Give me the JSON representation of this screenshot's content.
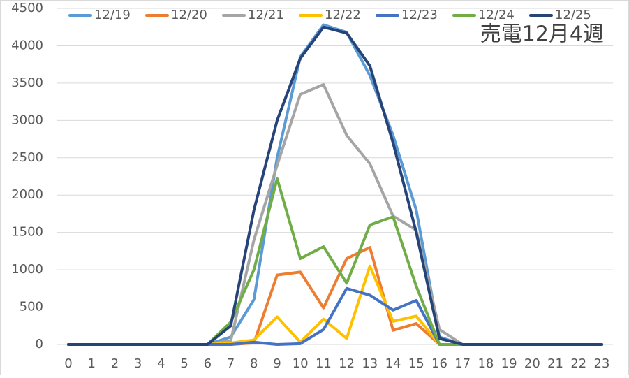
{
  "chart_data": {
    "type": "line",
    "annotation": "売電12月4週",
    "categories": [
      "0",
      "1",
      "2",
      "3",
      "4",
      "5",
      "6",
      "7",
      "8",
      "9",
      "10",
      "11",
      "12",
      "13",
      "14",
      "15",
      "16",
      "17",
      "18",
      "19",
      "20",
      "21",
      "22",
      "23"
    ],
    "series": [
      {
        "name": "12/19",
        "color": "#5b9bd5",
        "values": [
          0,
          0,
          0,
          0,
          0,
          0,
          0,
          100,
          600,
          2500,
          3850,
          4280,
          4180,
          3600,
          2800,
          1800,
          100,
          0,
          0,
          0,
          0,
          0,
          0,
          0
        ]
      },
      {
        "name": "12/20",
        "color": "#ed7d31",
        "values": [
          0,
          0,
          0,
          0,
          0,
          0,
          0,
          0,
          20,
          930,
          970,
          490,
          1150,
          1300,
          190,
          280,
          0,
          0,
          0,
          0,
          0,
          0,
          0,
          0
        ]
      },
      {
        "name": "12/21",
        "color": "#a5a5a5",
        "values": [
          0,
          0,
          0,
          0,
          0,
          0,
          0,
          50,
          1400,
          2400,
          3350,
          3480,
          2800,
          2420,
          1720,
          1530,
          200,
          0,
          0,
          0,
          0,
          0,
          0,
          0
        ]
      },
      {
        "name": "12/22",
        "color": "#ffc000",
        "values": [
          0,
          0,
          0,
          0,
          0,
          0,
          0,
          20,
          60,
          370,
          30,
          340,
          80,
          1050,
          310,
          380,
          0,
          0,
          0,
          0,
          0,
          0,
          0,
          0
        ]
      },
      {
        "name": "12/23",
        "color": "#4472c4",
        "values": [
          0,
          0,
          0,
          0,
          0,
          0,
          0,
          0,
          30,
          0,
          10,
          200,
          750,
          660,
          460,
          590,
          0,
          0,
          0,
          0,
          0,
          0,
          0,
          0
        ]
      },
      {
        "name": "12/24",
        "color": "#70ad47",
        "values": [
          0,
          0,
          0,
          0,
          0,
          0,
          0,
          300,
          1000,
          2220,
          1150,
          1310,
          820,
          1600,
          1710,
          780,
          0,
          0,
          0,
          0,
          0,
          0,
          0,
          0
        ]
      },
      {
        "name": "12/25",
        "color": "#264478",
        "values": [
          0,
          0,
          0,
          0,
          0,
          0,
          0,
          250,
          1800,
          3000,
          3830,
          4250,
          4170,
          3730,
          2700,
          1500,
          80,
          0,
          0,
          0,
          0,
          0,
          0,
          0
        ]
      }
    ],
    "ylim": [
      0,
      4500
    ],
    "yticks": [
      0,
      500,
      1000,
      1500,
      2000,
      2500,
      3000,
      3500,
      4000,
      4500
    ],
    "grid": true,
    "legend": "top"
  }
}
